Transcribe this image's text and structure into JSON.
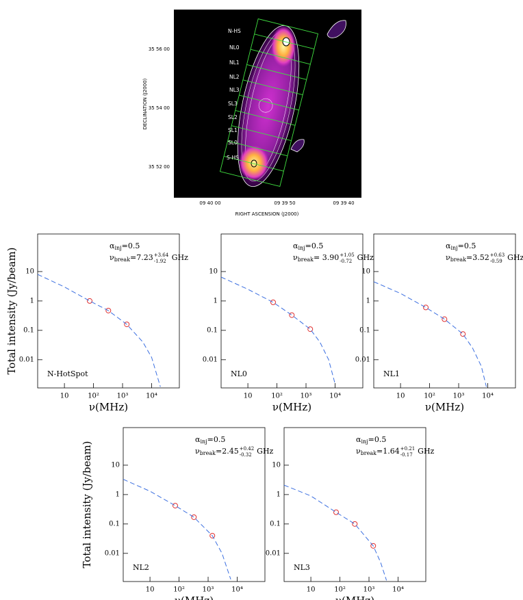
{
  "image": {
    "regions": [
      "N-HS",
      "NL0",
      "NL1",
      "NL2",
      "NL3",
      "SL3",
      "SL2",
      "SL1",
      "SL0",
      "S-HS"
    ],
    "y_ticks": [
      "35 56 00",
      "35 54 00",
      "35 52 00"
    ],
    "x_ticks": [
      "09 40 00",
      "09 39 50",
      "09 39 40"
    ],
    "x_label": "RIGHT ASCENSION  (J2000)",
    "y_label": "DECLINATION  (J2000)"
  },
  "chart_data": [
    {
      "type": "line",
      "label": "N-HotSpot",
      "ylabel": "Total intensity (Jy/beam)",
      "xlabel": "ν(MHz)",
      "log_x": true,
      "log_y": true,
      "xlim": [
        1.2,
        90000
      ],
      "ylim": [
        0.0011,
        190
      ],
      "xticks": [
        10,
        {
          "value": 100,
          "label": "10²"
        },
        {
          "value": 1000,
          "label": "10³"
        },
        {
          "value": 10000,
          "label": "10⁴"
        }
      ],
      "yticks": [
        10,
        1,
        0.1,
        0.01
      ],
      "annotations": {
        "alpha": {
          "symbol": "α",
          "sub": "inj",
          "text": "=0.5"
        },
        "break": {
          "symbol": "ν",
          "sub": "break",
          "text": "=7.23",
          "plus": "+3.64",
          "minus": "-1.92",
          "unit": "GHz"
        }
      },
      "series": [
        {
          "color": "#e03030",
          "marker": "circle",
          "x": [
            74,
            325,
            1400
          ],
          "values": [
            1.0,
            0.47,
            0.16
          ]
        },
        {
          "color": "#3a6ee0",
          "dashed": true,
          "x": [
            1.2,
            10,
            74,
            325,
            1400,
            5000,
            10000,
            20000
          ],
          "values": [
            8,
            3,
            1.0,
            0.47,
            0.16,
            0.04,
            0.012,
            0.0012
          ]
        }
      ]
    },
    {
      "type": "line",
      "label": "NL0",
      "xlabel": "ν(MHz)",
      "log_x": true,
      "log_y": true,
      "xlim": [
        1.2,
        90000
      ],
      "ylim": [
        0.0011,
        190
      ],
      "xticks": [
        10,
        {
          "value": 100,
          "label": "10²"
        },
        {
          "value": 1000,
          "label": "10³"
        },
        {
          "value": 10000,
          "label": "10⁴"
        }
      ],
      "yticks": [
        10,
        1,
        0.1,
        0.01
      ],
      "annotations": {
        "alpha": {
          "symbol": "α",
          "sub": "inj",
          "text": "=0.5"
        },
        "break": {
          "symbol": "ν",
          "sub": "break",
          "text": "= 3.90",
          "plus": "+1.05",
          "minus": "-0.72",
          "unit": "GHz"
        }
      },
      "series": [
        {
          "color": "#e03030",
          "marker": "circle",
          "x": [
            74,
            325,
            1400
          ],
          "values": [
            0.9,
            0.33,
            0.11
          ]
        },
        {
          "color": "#3a6ee0",
          "dashed": true,
          "x": [
            1.2,
            10,
            74,
            325,
            1400,
            3000,
            6000,
            10000
          ],
          "values": [
            6.5,
            2.5,
            0.9,
            0.33,
            0.11,
            0.04,
            0.01,
            0.0015
          ]
        }
      ]
    },
    {
      "type": "line",
      "label": "NL1",
      "xlabel": "ν(MHz)",
      "log_x": true,
      "log_y": true,
      "xlim": [
        1.2,
        90000
      ],
      "ylim": [
        0.0011,
        190
      ],
      "xticks": [
        10,
        {
          "value": 100,
          "label": "10²"
        },
        {
          "value": 1000,
          "label": "10³"
        },
        {
          "value": 10000,
          "label": "10⁴"
        }
      ],
      "yticks": [
        10,
        1,
        0.1,
        0.01
      ],
      "annotations": {
        "alpha": {
          "symbol": "α",
          "sub": "inj",
          "text": "=0.5"
        },
        "break": {
          "symbol": "ν",
          "sub": "break",
          "text": "=3.52",
          "plus": "+0.63",
          "minus": "-0.59",
          "unit": "GHz"
        }
      },
      "series": [
        {
          "color": "#e03030",
          "marker": "circle",
          "x": [
            74,
            325,
            1400
          ],
          "values": [
            0.6,
            0.24,
            0.075
          ]
        },
        {
          "color": "#3a6ee0",
          "dashed": true,
          "x": [
            1.2,
            10,
            74,
            325,
            1400,
            3000,
            6000,
            9000
          ],
          "values": [
            4.5,
            1.8,
            0.6,
            0.24,
            0.075,
            0.025,
            0.006,
            0.0012
          ]
        }
      ]
    },
    {
      "type": "line",
      "label": "NL2",
      "ylabel": "Total intensity (Jy/beam)",
      "xlabel": "ν(MHz)",
      "log_x": true,
      "log_y": true,
      "xlim": [
        1.2,
        90000
      ],
      "ylim": [
        0.0011,
        190
      ],
      "xticks": [
        10,
        {
          "value": 100,
          "label": "10²"
        },
        {
          "value": 1000,
          "label": "10³"
        },
        {
          "value": 10000,
          "label": "10⁴"
        }
      ],
      "yticks": [
        10,
        1,
        0.1,
        0.01
      ],
      "annotations": {
        "alpha": {
          "symbol": "α",
          "sub": "inj",
          "text": "=0.5"
        },
        "break": {
          "symbol": "ν",
          "sub": "break",
          "text": "=2.45",
          "plus": "+0.42",
          "minus": "-0.32",
          "unit": "GHz"
        }
      },
      "series": [
        {
          "color": "#e03030",
          "marker": "circle",
          "x": [
            74,
            325,
            1400
          ],
          "values": [
            0.42,
            0.17,
            0.04
          ]
        },
        {
          "color": "#3a6ee0",
          "dashed": true,
          "x": [
            1.2,
            10,
            74,
            325,
            1400,
            3000,
            6000
          ],
          "values": [
            3.3,
            1.3,
            0.42,
            0.17,
            0.04,
            0.01,
            0.0013
          ]
        }
      ]
    },
    {
      "type": "line",
      "label": "NL3",
      "xlabel": "ν(MHz)",
      "log_x": true,
      "log_y": true,
      "xlim": [
        1.2,
        90000
      ],
      "ylim": [
        0.0011,
        190
      ],
      "xticks": [
        10,
        {
          "value": 100,
          "label": "10²"
        },
        {
          "value": 1000,
          "label": "10³"
        },
        {
          "value": 10000,
          "label": "10⁴"
        }
      ],
      "yticks": [
        10,
        1,
        0.1,
        0.01
      ],
      "annotations": {
        "alpha": {
          "symbol": "α",
          "sub": "inj",
          "text": "=0.5"
        },
        "break": {
          "symbol": "ν",
          "sub": "break",
          "text": "=1.64",
          "plus": "+0.21",
          "minus": "-0.17",
          "unit": "GHz"
        }
      },
      "series": [
        {
          "color": "#e03030",
          "marker": "circle",
          "x": [
            74,
            325,
            1400
          ],
          "values": [
            0.25,
            0.1,
            0.018
          ]
        },
        {
          "color": "#3a6ee0",
          "dashed": true,
          "x": [
            1.2,
            10,
            74,
            325,
            1400,
            2500,
            4000
          ],
          "values": [
            2.1,
            0.9,
            0.25,
            0.1,
            0.018,
            0.005,
            0.0012
          ]
        }
      ]
    }
  ]
}
